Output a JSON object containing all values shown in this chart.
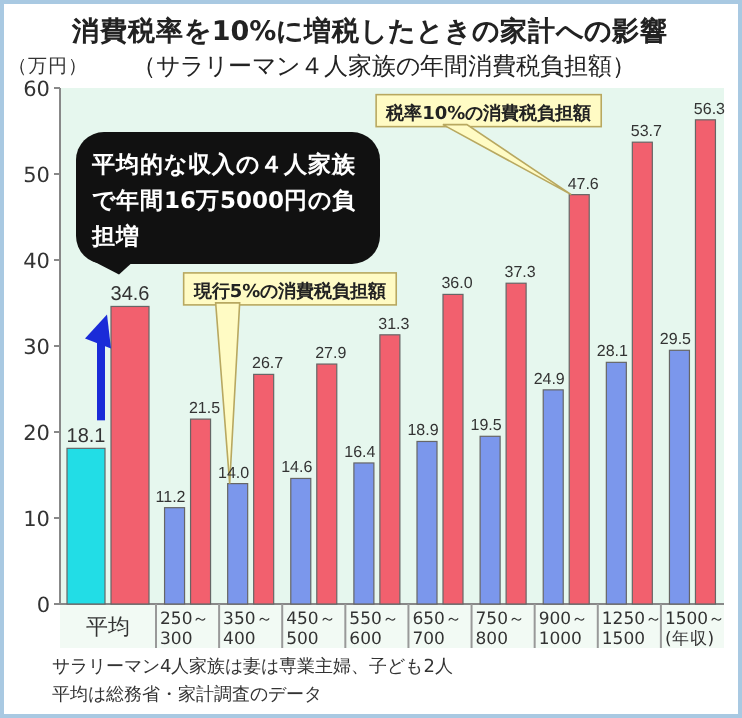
{
  "chart_data": {
    "type": "bar",
    "title": "消費税率を10%に増税したときの家計への影響",
    "subtitle": "（サラリーマン４人家族の年間消費税負担額）",
    "ylabel": "（万円）",
    "categories": [
      "平均",
      "250～300",
      "350～400",
      "450～500",
      "550～600",
      "650～700",
      "750～800",
      "900～1000",
      "1250～1500",
      "1500～(年収)"
    ],
    "series": [
      {
        "name": "現行5%の消費税負担額",
        "colors": [
          "#22dde6",
          "#7b97ec",
          "#7b97ec",
          "#7b97ec",
          "#7b97ec",
          "#7b97ec",
          "#7b97ec",
          "#7b97ec",
          "#7b97ec",
          "#7b97ec"
        ],
        "values": [
          18.1,
          11.2,
          14.0,
          14.6,
          16.4,
          18.9,
          19.5,
          24.9,
          28.1,
          29.5
        ],
        "value_labels": [
          "18.1",
          "11.2",
          "14.0",
          "14.6",
          "16.4",
          "18.9",
          "19.5",
          "24.9",
          "28.1",
          "29.5"
        ]
      },
      {
        "name": "税率10%の消費税負担額",
        "color": "#f2606e",
        "values": [
          34.6,
          21.5,
          26.7,
          27.9,
          31.3,
          36.0,
          37.3,
          47.6,
          53.7,
          56.3
        ],
        "value_labels": [
          "34.6",
          "21.5",
          "26.7",
          "27.9",
          "31.3",
          "36.0",
          "37.3",
          "47.6",
          "53.7",
          "56.3"
        ]
      }
    ],
    "ylim": [
      0,
      60
    ],
    "yticks": [
      0,
      10,
      20,
      30,
      40,
      50,
      60
    ],
    "data_labels": true,
    "legend": false,
    "annotations": [
      "平均的な収入の４人家族で年間16万5000円の負担増",
      "サラリーマン4人家族は妻は専業主婦、子ども2人",
      "平均は総務省・家計調査のデータ"
    ]
  }
}
